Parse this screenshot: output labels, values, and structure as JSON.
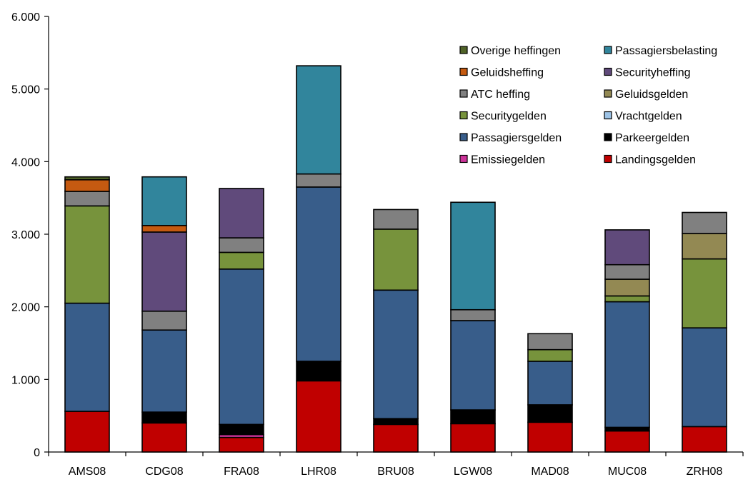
{
  "chart_data": {
    "type": "bar",
    "stacked": true,
    "title": "",
    "xlabel": "",
    "ylabel": "",
    "ylim": [
      0,
      6000
    ],
    "yticks": [
      0,
      1000,
      2000,
      3000,
      4000,
      5000,
      6000
    ],
    "ytick_labels": [
      "0",
      "1.000",
      "2.000",
      "3.000",
      "4.000",
      "5.000",
      "6.000"
    ],
    "grid": false,
    "legend_position": "top-right",
    "categories": [
      "AMS08",
      "CDG08",
      "FRA08",
      "LHR08",
      "BRU08",
      "LGW08",
      "MAD08",
      "MUC08",
      "ZRH08"
    ],
    "series": [
      {
        "name": "Landingsgelden",
        "color": "#c00000",
        "values": [
          560,
          400,
          200,
          980,
          380,
          390,
          410,
          290,
          350
        ]
      },
      {
        "name": "Emissiegelden",
        "color": "#cc3399",
        "values": [
          0,
          0,
          40,
          0,
          0,
          0,
          0,
          0,
          0
        ]
      },
      {
        "name": "Parkeergelden",
        "color": "#000000",
        "values": [
          0,
          150,
          140,
          270,
          80,
          190,
          240,
          50,
          0
        ]
      },
      {
        "name": "Passagiersgelden",
        "color": "#385d8a",
        "values": [
          1490,
          1130,
          2140,
          2400,
          1770,
          1230,
          600,
          1730,
          1360
        ]
      },
      {
        "name": "Vrachtgelden",
        "color": "#9dc3e6",
        "values": [
          0,
          0,
          0,
          0,
          0,
          0,
          0,
          0,
          0
        ]
      },
      {
        "name": "Securitygelden",
        "color": "#77933c",
        "values": [
          1340,
          0,
          230,
          0,
          840,
          0,
          160,
          80,
          950
        ]
      },
      {
        "name": "Geluidsgelden",
        "color": "#938953",
        "values": [
          0,
          0,
          0,
          0,
          0,
          0,
          0,
          230,
          350
        ]
      },
      {
        "name": "ATC heffing",
        "color": "#808080",
        "values": [
          200,
          260,
          200,
          180,
          270,
          150,
          220,
          200,
          290
        ]
      },
      {
        "name": "Securityheffing",
        "color": "#604a7b",
        "values": [
          0,
          1090,
          680,
          0,
          0,
          0,
          0,
          480,
          0
        ]
      },
      {
        "name": "Geluidsheffing",
        "color": "#c55a11",
        "values": [
          160,
          90,
          0,
          0,
          0,
          0,
          0,
          0,
          0
        ]
      },
      {
        "name": "Passagiersbelasting",
        "color": "#31859c",
        "values": [
          0,
          670,
          0,
          1490,
          0,
          1480,
          0,
          0,
          0
        ]
      },
      {
        "name": "Overige heffingen",
        "color": "#4f6228",
        "values": [
          40,
          0,
          0,
          0,
          0,
          0,
          0,
          0,
          0
        ]
      }
    ],
    "legend_order": [
      "Overige heffingen",
      "Passagiersbelasting",
      "Geluidsheffing",
      "Securityheffing",
      "ATC heffing",
      "Geluidsgelden",
      "Securitygelden",
      "Vrachtgelden",
      "Passagiersgelden",
      "Parkeergelden",
      "Emissiegelden",
      "Landingsgelden"
    ]
  }
}
